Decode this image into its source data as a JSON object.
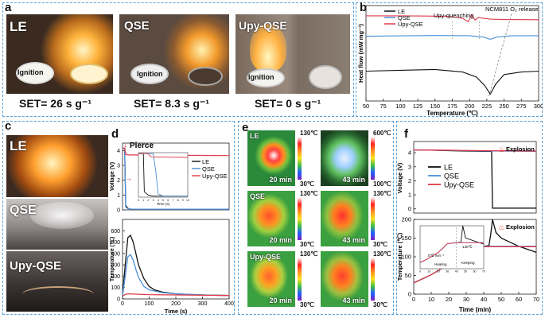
{
  "panels": {
    "a": {
      "label": "a",
      "photos": [
        {
          "name": "LE",
          "ignition": "Ignition"
        },
        {
          "name": "QSE",
          "ignition": "Ignition"
        },
        {
          "name": "Upy-QSE",
          "ignition": "Ignition"
        }
      ],
      "set": [
        "SET= 26 s g⁻¹",
        "SET= 8.3 s g⁻¹",
        "SET= 0 s g⁻¹"
      ]
    },
    "b": {
      "label": "b"
    },
    "c": {
      "label": "c",
      "photos": [
        "LE",
        "QSE",
        "Upy-QSE"
      ]
    },
    "d": {
      "label": "d"
    },
    "e": {
      "label": "e",
      "tiles": [
        {
          "name": "LE",
          "time": "20 min",
          "scale_max": "130℃",
          "scale_min": "30℃"
        },
        {
          "name": "",
          "time": "43 min",
          "scale_max": "600℃",
          "scale_min": "100℃"
        },
        {
          "name": "QSE",
          "time": "20 min",
          "scale_max": "130℃",
          "scale_min": "30℃"
        },
        {
          "name": "",
          "time": "43 min",
          "scale_max": "130℃",
          "scale_min": "30℃"
        },
        {
          "name": "Upy-QSE",
          "time": "20 min",
          "scale_max": "130℃",
          "scale_min": "30℃"
        },
        {
          "name": "",
          "time": "43 min",
          "scale_max": "130℃",
          "scale_min": "30℃"
        }
      ]
    },
    "f": {
      "label": "f"
    }
  },
  "colors": {
    "LE": "#111111",
    "QSE": "#4a90d9",
    "UpyQSE": "#e0394a",
    "frame": "#5a9fd4"
  },
  "chart_data": [
    {
      "id": "b",
      "type": "line",
      "title": "",
      "xlabel": "Temperature (℃)",
      "ylabel": "Heat flow (mW mg⁻¹)",
      "xlim": [
        50,
        300
      ],
      "xticks": [
        "50",
        "75",
        "100",
        "125",
        "150",
        "175",
        "200",
        "225",
        "250",
        "275",
        "300"
      ],
      "legend": [
        "LE",
        "QSE",
        "Upy-QSE"
      ],
      "annotations": [
        "Upy-quenching",
        "NCM811 O₂ release"
      ],
      "series": [
        {
          "name": "LE",
          "x": [
            50,
            100,
            150,
            190,
            210,
            222,
            230,
            238,
            250,
            275,
            300
          ],
          "y": [
            -3.05,
            -3.0,
            -2.95,
            -3.1,
            -3.4,
            -3.9,
            -4.4,
            -3.8,
            -3.25,
            -3.1,
            -3.05
          ]
        },
        {
          "name": "QSE",
          "x": [
            50,
            100,
            150,
            200,
            220,
            230,
            240,
            260,
            300
          ],
          "y": [
            -1.0,
            -0.98,
            -0.96,
            -0.97,
            -1.05,
            -1.18,
            -1.05,
            -0.98,
            -0.97
          ]
        },
        {
          "name": "Upy-QSE",
          "x": [
            50,
            100,
            150,
            175,
            190,
            198,
            203,
            208,
            213,
            220,
            230,
            250,
            300
          ],
          "y": [
            0.2,
            0.2,
            0.18,
            0.14,
            0.05,
            -0.15,
            0.25,
            -0.05,
            0.1,
            0.05,
            0.0,
            -0.02,
            -0.03
          ]
        }
      ],
      "ylim": [
        -4.8,
        0.8
      ]
    },
    {
      "id": "d-top",
      "type": "line",
      "annotations": [
        "Pierce"
      ],
      "xlim": [
        0,
        400
      ],
      "ylim": [
        0,
        4.5
      ],
      "yticks": [
        "0",
        "1",
        "2",
        "3",
        "4"
      ],
      "ylabel": "Voltage (V)",
      "legend": [
        "LE",
        "QSE",
        "Upy-QSE"
      ],
      "series": [
        {
          "name": "LE",
          "x": [
            0,
            8,
            12,
            20,
            30,
            60,
            120,
            200,
            300,
            400
          ],
          "y": [
            4.15,
            4.15,
            0.3,
            0.1,
            0.05,
            0.05,
            0.05,
            0.05,
            0.05,
            0.05
          ]
        },
        {
          "name": "QSE",
          "x": [
            0,
            8,
            12,
            18,
            30,
            60,
            120,
            200,
            300,
            400
          ],
          "y": [
            4.15,
            4.15,
            0.2,
            0.1,
            0.05,
            0.05,
            0.05,
            0.05,
            0.05,
            0.05
          ]
        },
        {
          "name": "Upy-QSE",
          "x": [
            0,
            8,
            12,
            20,
            40,
            100,
            200,
            300,
            400
          ],
          "y": [
            4.15,
            4.15,
            3.75,
            3.7,
            3.7,
            3.69,
            3.68,
            3.67,
            3.66
          ]
        }
      ],
      "inset": {
        "xlabel": "Time (s)",
        "xlim": [
          0,
          10
        ],
        "ylim": [
          0,
          4.2
        ],
        "xticks": [
          "0",
          "1",
          "2",
          "3",
          "4",
          "5",
          "6",
          "7",
          "8",
          "9",
          "10"
        ],
        "series": [
          {
            "name": "LE",
            "x": [
              0,
              1,
              1.2,
              2,
              3,
              10
            ],
            "y": [
              4.1,
              4.1,
              0.5,
              0.2,
              0.1,
              0.1
            ]
          },
          {
            "name": "QSE",
            "x": [
              0,
              3,
              3.5,
              4,
              5,
              10
            ],
            "y": [
              4.1,
              4.1,
              2.5,
              0.3,
              0.1,
              0.1
            ]
          },
          {
            "name": "Upy-QSE",
            "x": [
              0,
              2,
              2.5,
              10
            ],
            "y": [
              4.1,
              4.1,
              3.8,
              3.75
            ]
          }
        ]
      }
    },
    {
      "id": "d-bottom",
      "type": "line",
      "xlabel": "Time (s)",
      "ylabel": "Temperature (℃)",
      "xlim": [
        0,
        400
      ],
      "ylim": [
        0,
        700
      ],
      "xticks": [
        "0",
        "100",
        "200",
        "300",
        "400"
      ],
      "yticks": [
        "0",
        "100",
        "200",
        "300",
        "400",
        "500",
        "600"
      ],
      "series": [
        {
          "name": "LE",
          "x": [
            0,
            10,
            20,
            30,
            40,
            50,
            60,
            80,
            100,
            120,
            150,
            200,
            300,
            400
          ],
          "y": [
            25,
            300,
            540,
            560,
            500,
            400,
            300,
            180,
            110,
            80,
            60,
            45,
            35,
            30
          ]
        },
        {
          "name": "QSE",
          "x": [
            0,
            10,
            20,
            30,
            40,
            50,
            60,
            80,
            100,
            150,
            200,
            300,
            400
          ],
          "y": [
            25,
            200,
            370,
            390,
            340,
            260,
            190,
            110,
            80,
            55,
            45,
            35,
            30
          ]
        },
        {
          "name": "Upy-QSE",
          "x": [
            0,
            10,
            20,
            50,
            100,
            200,
            300,
            400
          ],
          "y": [
            25,
            40,
            45,
            42,
            38,
            35,
            32,
            30
          ]
        }
      ]
    },
    {
      "id": "f-top",
      "type": "line",
      "ylabel": "Voltage (V)",
      "xlim": [
        0,
        70
      ],
      "ylim": [
        -0.3,
        4.8
      ],
      "yticks": [
        "0",
        "1",
        "2",
        "3",
        "4"
      ],
      "legend": [
        "LE",
        "QSE",
        "Upy-QSE"
      ],
      "annotations": [
        "Explosion"
      ],
      "series": [
        {
          "name": "LE",
          "x": [
            0,
            10,
            20,
            30,
            40,
            44.5,
            45,
            50,
            60,
            70
          ],
          "y": [
            4.2,
            4.18,
            4.15,
            4.12,
            4.1,
            4.1,
            0.05,
            0.05,
            0.05,
            0.05
          ]
        },
        {
          "name": "QSE",
          "x": [
            0,
            10,
            20,
            30,
            40,
            50,
            60,
            70
          ],
          "y": [
            4.2,
            4.19,
            4.17,
            4.15,
            4.13,
            4.12,
            4.11,
            4.1
          ]
        },
        {
          "name": "Upy-QSE",
          "x": [
            0,
            10,
            20,
            30,
            40,
            50,
            60,
            70
          ],
          "y": [
            4.2,
            4.19,
            4.18,
            4.16,
            4.15,
            4.14,
            4.13,
            4.12
          ]
        }
      ]
    },
    {
      "id": "f-bottom",
      "type": "line",
      "xlabel": "Time (min)",
      "ylabel": "Temperature (℃)",
      "xlim": [
        0,
        70
      ],
      "ylim": [
        0,
        200
      ],
      "xticks": [
        "0",
        "10",
        "20",
        "30",
        "40",
        "50",
        "60",
        "70"
      ],
      "yticks": [
        "0",
        "50",
        "100",
        "150",
        "200"
      ],
      "annotations": [
        "Explosion"
      ],
      "series": [
        {
          "name": "LE",
          "x": [
            0,
            10,
            20,
            25,
            30,
            40,
            43,
            44,
            45,
            47,
            50,
            60,
            70
          ],
          "y": [
            30,
            52,
            80,
            100,
            122,
            128,
            130,
            160,
            200,
            165,
            150,
            128,
            112
          ]
        },
        {
          "name": "QSE",
          "x": [
            0,
            10,
            20,
            25,
            30,
            40,
            50,
            60,
            70
          ],
          "y": [
            30,
            52,
            80,
            100,
            122,
            128,
            128,
            128,
            128
          ]
        },
        {
          "name": "Upy-QSE",
          "x": [
            0,
            10,
            20,
            25,
            30,
            40,
            50,
            60,
            70
          ],
          "y": [
            30,
            52,
            80,
            100,
            122,
            127,
            127,
            127,
            127
          ]
        }
      ],
      "inset": {
        "labels": [
          "5℃ min⁻¹",
          "130℃",
          "Heating",
          "Keeping"
        ],
        "xticks": [
          "0",
          "10",
          "20",
          "30",
          "40",
          "50",
          "60",
          "70"
        ],
        "xlim": [
          0,
          70
        ],
        "ylim": [
          0,
          210
        ],
        "series": [
          {
            "name": "LE",
            "x": [
              0,
              10,
              20,
              25,
              30,
              40,
              45,
              47,
              50,
              70
            ],
            "y": [
              30,
              52,
              80,
              100,
              122,
              128,
              130,
              210,
              150,
              120
            ]
          },
          {
            "name": "QSE",
            "x": [
              0,
              10,
              20,
              25,
              30,
              40,
              50,
              70
            ],
            "y": [
              30,
              52,
              80,
              100,
              122,
              128,
              128,
              128
            ]
          },
          {
            "name": "Upy-QSE",
            "x": [
              0,
              10,
              20,
              25,
              30,
              40,
              50,
              70
            ],
            "y": [
              30,
              52,
              80,
              100,
              122,
              127,
              127,
              127
            ]
          }
        ]
      }
    }
  ]
}
